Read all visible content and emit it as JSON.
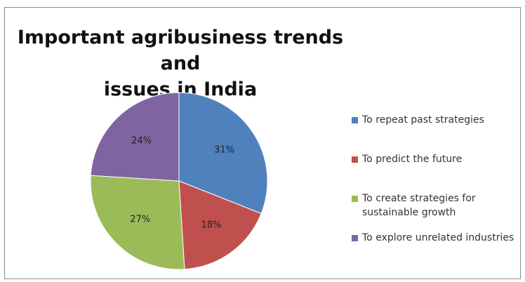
{
  "chart_data": {
    "type": "pie",
    "title": "Important agribusiness trends and\nissues in India",
    "categories": [
      "To repeat past strategies",
      "To predict the future",
      "To create strategies for sustainable growth",
      "To explore unrelated industries"
    ],
    "values": [
      31,
      18,
      27,
      24
    ],
    "data_labels": [
      "31%",
      "18%",
      "27%",
      "24%"
    ],
    "colors": [
      "#4f81bd",
      "#c0504d",
      "#9bbb59",
      "#8064a2"
    ],
    "legend_position": "right",
    "legend": [
      {
        "label": "To repeat past strategies",
        "color": "#4f81bd"
      },
      {
        "label": "To predict the future",
        "color": "#c0504d"
      },
      {
        "label": "To create strategies for sustainable growth",
        "color": "#9bbb59"
      },
      {
        "label": "To explore unrelated industries",
        "color": "#8064a2"
      }
    ]
  }
}
